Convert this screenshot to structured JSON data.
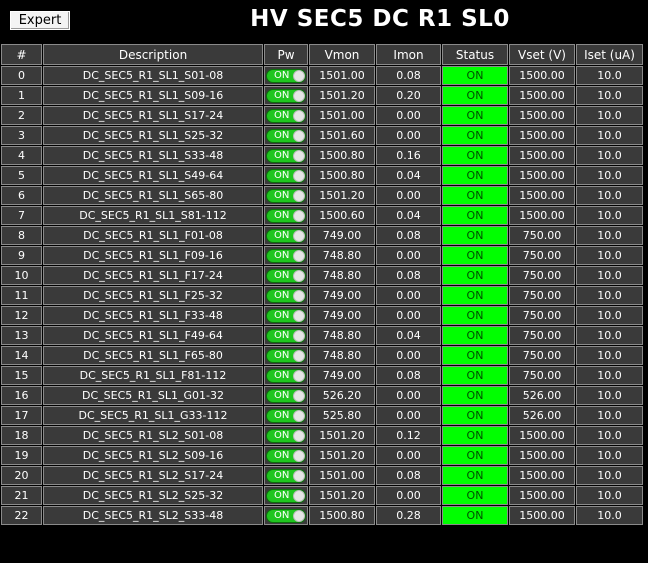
{
  "header": {
    "expert_label": "Expert",
    "title": "HV SEC5 DC R1 SL0"
  },
  "columns": [
    "#",
    "Description",
    "Pw",
    "Vmon",
    "Imon",
    "Status",
    "Vset (V)",
    "Iset (uA)"
  ],
  "colors": {
    "status_on": "#00ff00",
    "toggle_on": "#1fc51f",
    "cell_bg": "#3a3a3a",
    "background": "#000000"
  },
  "rows": [
    {
      "idx": "0",
      "desc": "DC_SEC5_R1_SL1_S01-08",
      "pw": "ON",
      "vmon": "1501.00",
      "imon": "0.08",
      "status": "ON",
      "vset": "1500.00",
      "iset": "10.0"
    },
    {
      "idx": "1",
      "desc": "DC_SEC5_R1_SL1_S09-16",
      "pw": "ON",
      "vmon": "1501.20",
      "imon": "0.20",
      "status": "ON",
      "vset": "1500.00",
      "iset": "10.0"
    },
    {
      "idx": "2",
      "desc": "DC_SEC5_R1_SL1_S17-24",
      "pw": "ON",
      "vmon": "1501.00",
      "imon": "0.00",
      "status": "ON",
      "vset": "1500.00",
      "iset": "10.0"
    },
    {
      "idx": "3",
      "desc": "DC_SEC5_R1_SL1_S25-32",
      "pw": "ON",
      "vmon": "1501.60",
      "imon": "0.00",
      "status": "ON",
      "vset": "1500.00",
      "iset": "10.0"
    },
    {
      "idx": "4",
      "desc": "DC_SEC5_R1_SL1_S33-48",
      "pw": "ON",
      "vmon": "1500.80",
      "imon": "0.16",
      "status": "ON",
      "vset": "1500.00",
      "iset": "10.0"
    },
    {
      "idx": "5",
      "desc": "DC_SEC5_R1_SL1_S49-64",
      "pw": "ON",
      "vmon": "1500.80",
      "imon": "0.04",
      "status": "ON",
      "vset": "1500.00",
      "iset": "10.0"
    },
    {
      "idx": "6",
      "desc": "DC_SEC5_R1_SL1_S65-80",
      "pw": "ON",
      "vmon": "1501.20",
      "imon": "0.00",
      "status": "ON",
      "vset": "1500.00",
      "iset": "10.0"
    },
    {
      "idx": "7",
      "desc": "DC_SEC5_R1_SL1_S81-112",
      "pw": "ON",
      "vmon": "1500.60",
      "imon": "0.04",
      "status": "ON",
      "vset": "1500.00",
      "iset": "10.0"
    },
    {
      "idx": "8",
      "desc": "DC_SEC5_R1_SL1_F01-08",
      "pw": "ON",
      "vmon": "749.00",
      "imon": "0.08",
      "status": "ON",
      "vset": "750.00",
      "iset": "10.0"
    },
    {
      "idx": "9",
      "desc": "DC_SEC5_R1_SL1_F09-16",
      "pw": "ON",
      "vmon": "748.80",
      "imon": "0.00",
      "status": "ON",
      "vset": "750.00",
      "iset": "10.0"
    },
    {
      "idx": "10",
      "desc": "DC_SEC5_R1_SL1_F17-24",
      "pw": "ON",
      "vmon": "748.80",
      "imon": "0.08",
      "status": "ON",
      "vset": "750.00",
      "iset": "10.0"
    },
    {
      "idx": "11",
      "desc": "DC_SEC5_R1_SL1_F25-32",
      "pw": "ON",
      "vmon": "749.00",
      "imon": "0.00",
      "status": "ON",
      "vset": "750.00",
      "iset": "10.0"
    },
    {
      "idx": "12",
      "desc": "DC_SEC5_R1_SL1_F33-48",
      "pw": "ON",
      "vmon": "749.00",
      "imon": "0.00",
      "status": "ON",
      "vset": "750.00",
      "iset": "10.0"
    },
    {
      "idx": "13",
      "desc": "DC_SEC5_R1_SL1_F49-64",
      "pw": "ON",
      "vmon": "748.80",
      "imon": "0.04",
      "status": "ON",
      "vset": "750.00",
      "iset": "10.0"
    },
    {
      "idx": "14",
      "desc": "DC_SEC5_R1_SL1_F65-80",
      "pw": "ON",
      "vmon": "748.80",
      "imon": "0.00",
      "status": "ON",
      "vset": "750.00",
      "iset": "10.0"
    },
    {
      "idx": "15",
      "desc": "DC_SEC5_R1_SL1_F81-112",
      "pw": "ON",
      "vmon": "749.00",
      "imon": "0.08",
      "status": "ON",
      "vset": "750.00",
      "iset": "10.0"
    },
    {
      "idx": "16",
      "desc": "DC_SEC5_R1_SL1_G01-32",
      "pw": "ON",
      "vmon": "526.20",
      "imon": "0.00",
      "status": "ON",
      "vset": "526.00",
      "iset": "10.0"
    },
    {
      "idx": "17",
      "desc": "DC_SEC5_R1_SL1_G33-112",
      "pw": "ON",
      "vmon": "525.80",
      "imon": "0.00",
      "status": "ON",
      "vset": "526.00",
      "iset": "10.0"
    },
    {
      "idx": "18",
      "desc": "DC_SEC5_R1_SL2_S01-08",
      "pw": "ON",
      "vmon": "1501.20",
      "imon": "0.12",
      "status": "ON",
      "vset": "1500.00",
      "iset": "10.0"
    },
    {
      "idx": "19",
      "desc": "DC_SEC5_R1_SL2_S09-16",
      "pw": "ON",
      "vmon": "1501.20",
      "imon": "0.00",
      "status": "ON",
      "vset": "1500.00",
      "iset": "10.0"
    },
    {
      "idx": "20",
      "desc": "DC_SEC5_R1_SL2_S17-24",
      "pw": "ON",
      "vmon": "1501.00",
      "imon": "0.08",
      "status": "ON",
      "vset": "1500.00",
      "iset": "10.0"
    },
    {
      "idx": "21",
      "desc": "DC_SEC5_R1_SL2_S25-32",
      "pw": "ON",
      "vmon": "1501.20",
      "imon": "0.00",
      "status": "ON",
      "vset": "1500.00",
      "iset": "10.0"
    },
    {
      "idx": "22",
      "desc": "DC_SEC5_R1_SL2_S33-48",
      "pw": "ON",
      "vmon": "1500.80",
      "imon": "0.28",
      "status": "ON",
      "vset": "1500.00",
      "iset": "10.0"
    }
  ]
}
